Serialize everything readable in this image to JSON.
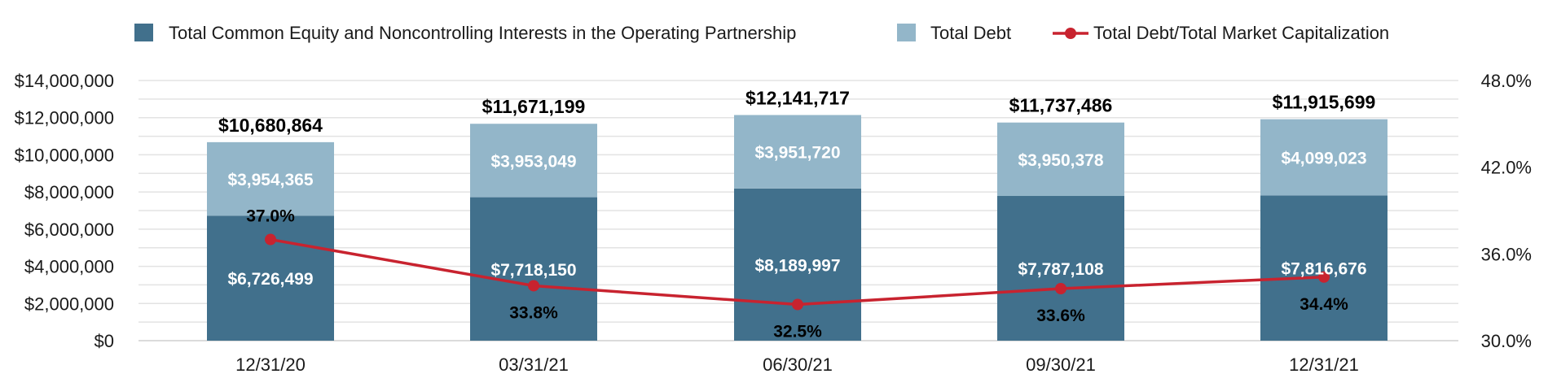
{
  "chart_data": {
    "type": "bar",
    "stacked": true,
    "categories": [
      "12/31/20",
      "03/31/21",
      "06/30/21",
      "09/30/21",
      "12/31/21"
    ],
    "series": [
      {
        "name": "Total Common Equity and Noncontrolling Interests in the Operating Partnership",
        "values": [
          6726499,
          7718150,
          8189997,
          7787108,
          7816676
        ],
        "labels": [
          "$6,726,499",
          "$7,718,150",
          "$8,189,997",
          "$7,787,108",
          "$7,816,676"
        ],
        "color": "#41708c"
      },
      {
        "name": "Total Debt",
        "values": [
          3954365,
          3953049,
          3951720,
          3950378,
          4099023
        ],
        "labels": [
          "$3,954,365",
          "$3,953,049",
          "$3,951,720",
          "$3,950,378",
          "$4,099,023"
        ],
        "color": "#93b6c9"
      }
    ],
    "totals": {
      "values": [
        10680864,
        11671199,
        12141717,
        11737486,
        11915699
      ],
      "labels": [
        "$10,680,864",
        "$11,671,199",
        "$12,141,717",
        "$11,737,486",
        "$11,915,699"
      ]
    },
    "line_series": {
      "name": "Total Debt/Total Market Capitalization",
      "axis": "right",
      "values": [
        37.0,
        33.8,
        32.5,
        33.6,
        34.4
      ],
      "labels": [
        "37.0%",
        "33.8%",
        "32.5%",
        "33.6%",
        "34.4%"
      ],
      "color": "#c8232f"
    },
    "y_left": {
      "range": [
        0,
        14000000
      ],
      "ticks": [
        0,
        2000000,
        4000000,
        6000000,
        8000000,
        10000000,
        12000000,
        14000000
      ],
      "tick_labels": [
        "$0",
        "$2,000,000",
        "$4,000,000",
        "$6,000,000",
        "$8,000,000",
        "$10,000,000",
        "$12,000,000",
        "$14,000,000"
      ]
    },
    "y_right": {
      "range": [
        30.0,
        48.0
      ],
      "ticks": [
        30.0,
        36.0,
        42.0,
        48.0
      ],
      "tick_labels": [
        "30.0%",
        "36.0%",
        "42.0%",
        "48.0%"
      ]
    },
    "grid": true,
    "legend_position": "top",
    "title": "",
    "xlabel": "",
    "ylabel": ""
  }
}
